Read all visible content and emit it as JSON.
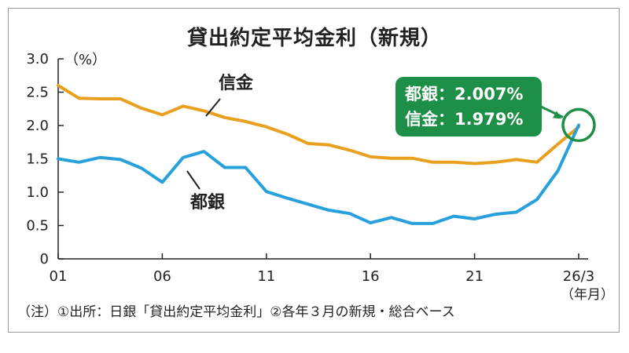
{
  "chart_data": {
    "type": "line",
    "title": "貸出約定平均金利（新規）",
    "ylabel": "（%）",
    "xlabel_unit": "（年月）",
    "ylim": [
      0,
      3.0
    ],
    "yticks": [
      "0",
      "0.5",
      "1.0",
      "1.5",
      "2.0",
      "2.5",
      "3.0"
    ],
    "xticks": [
      "01",
      "06",
      "11",
      "16",
      "21",
      "26/3"
    ],
    "x": [
      2001,
      2002,
      2003,
      2004,
      2005,
      2006,
      2007,
      2008,
      2009,
      2010,
      2011,
      2012,
      2013,
      2014,
      2015,
      2016,
      2017,
      2018,
      2019,
      2020,
      2021,
      2022,
      2023,
      2024,
      2025,
      2026
    ],
    "series": [
      {
        "name": "信金",
        "color": "#e8a01e",
        "values": [
          2.6,
          2.41,
          2.4,
          2.4,
          2.26,
          2.16,
          2.29,
          2.22,
          2.12,
          2.06,
          1.98,
          1.87,
          1.73,
          1.71,
          1.63,
          1.53,
          1.51,
          1.51,
          1.45,
          1.45,
          1.43,
          1.45,
          1.49,
          1.45,
          1.72,
          1.979
        ]
      },
      {
        "name": "都銀",
        "color": "#27a0dc",
        "values": [
          1.5,
          1.45,
          1.52,
          1.49,
          1.36,
          1.15,
          1.52,
          1.61,
          1.37,
          1.37,
          1.01,
          0.91,
          0.82,
          0.73,
          0.68,
          0.54,
          0.62,
          0.53,
          0.53,
          0.64,
          0.6,
          0.67,
          0.7,
          0.89,
          1.32,
          2.007
        ]
      }
    ],
    "callout": {
      "line1": "都銀：2.007%",
      "line2": "信金：1.979%",
      "color": "#1e8f47"
    },
    "grid": false,
    "legend": "inline labels"
  },
  "note": "（注）①出所：日銀「貸出約定平均金利」②各年３月の新規・総合ベース"
}
